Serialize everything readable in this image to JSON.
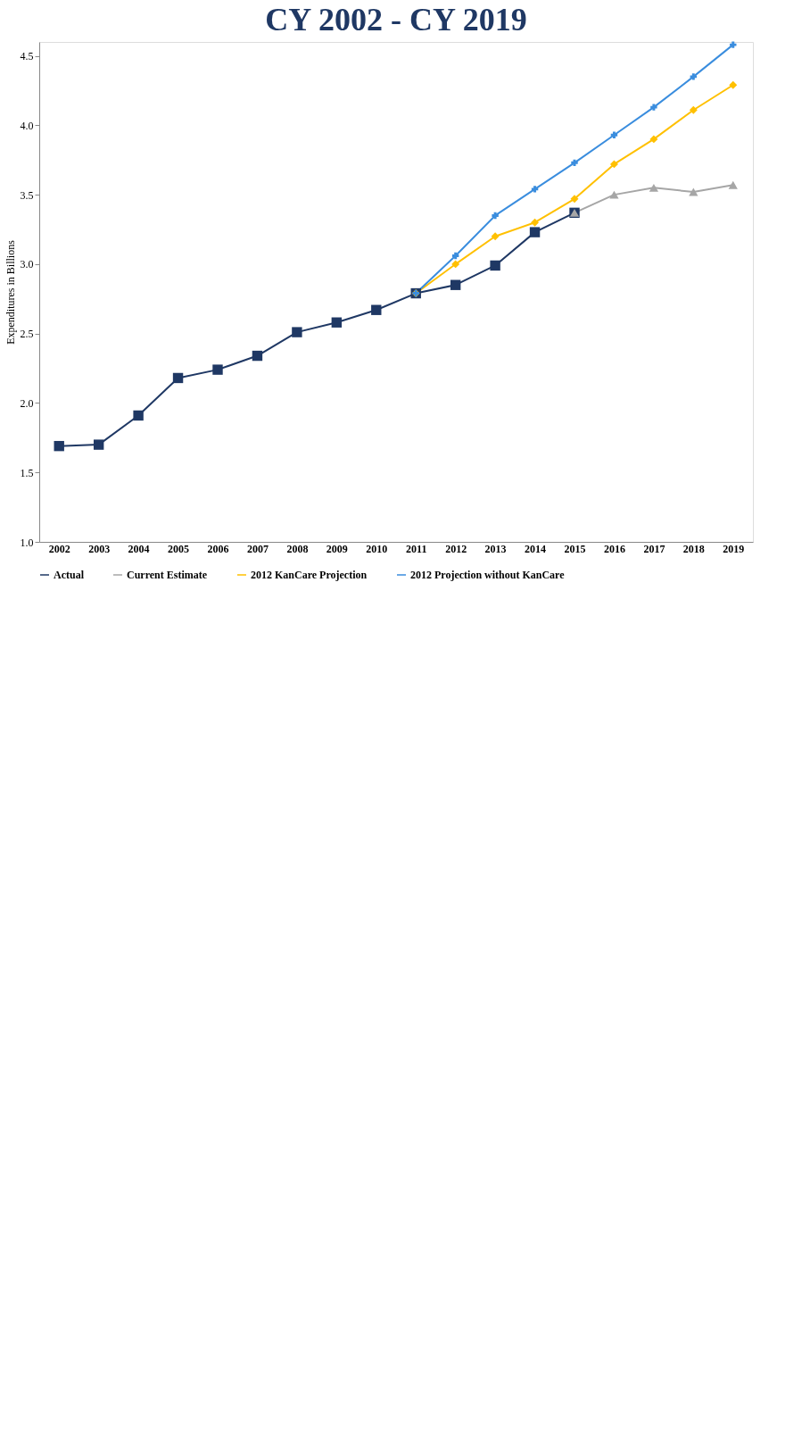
{
  "chart_data": {
    "type": "line",
    "title": "CY 2002 - CY 2019",
    "ylabel": "Expenditures in Billions",
    "categories": [
      "2002",
      "2003",
      "2004",
      "2005",
      "2006",
      "2007",
      "2008",
      "2009",
      "2010",
      "2011",
      "2012",
      "2013",
      "2014",
      "2015",
      "2016",
      "2017",
      "2018",
      "2019"
    ],
    "series": [
      {
        "name": "Actual",
        "color": "#1f3864",
        "marker": "square",
        "values": [
          1.69,
          1.7,
          1.91,
          2.18,
          2.24,
          2.34,
          2.51,
          2.58,
          2.67,
          2.79,
          2.85,
          2.99,
          3.23,
          3.37,
          null,
          null,
          null,
          null
        ]
      },
      {
        "name": "Current Estimate",
        "color": "#a6a6a6",
        "marker": "triangle",
        "values": [
          null,
          null,
          null,
          null,
          null,
          null,
          null,
          null,
          null,
          null,
          null,
          null,
          null,
          3.37,
          3.5,
          3.55,
          3.52,
          3.57
        ]
      },
      {
        "name": "2012 KanCare Projection",
        "color": "#ffc000",
        "marker": "diamond",
        "values": [
          null,
          null,
          null,
          null,
          null,
          null,
          null,
          null,
          null,
          2.79,
          3.0,
          3.2,
          3.3,
          3.47,
          3.72,
          3.9,
          4.11,
          4.29
        ]
      },
      {
        "name": "2012 Projection without KanCare",
        "color": "#3a8dde",
        "marker": "cross",
        "values": [
          null,
          null,
          null,
          null,
          null,
          null,
          null,
          null,
          null,
          2.79,
          3.06,
          3.35,
          3.54,
          3.73,
          3.93,
          4.13,
          4.35,
          4.58
        ]
      }
    ],
    "ylim": [
      1.0,
      4.6
    ],
    "yticks": [
      {
        "value": 1.0,
        "label": "1.0"
      },
      {
        "value": 1.5,
        "label": "1.5"
      },
      {
        "value": 2.0,
        "label": "2.0"
      },
      {
        "value": 2.5,
        "label": "2.5"
      },
      {
        "value": 3.0,
        "label": "3.0"
      },
      {
        "value": 3.5,
        "label": "3.5"
      },
      {
        "value": 4.0,
        "label": "4.0"
      },
      {
        "value": 4.5,
        "label": "4.5"
      }
    ],
    "grid": false,
    "legend": "bottom",
    "line_style": "solid"
  }
}
